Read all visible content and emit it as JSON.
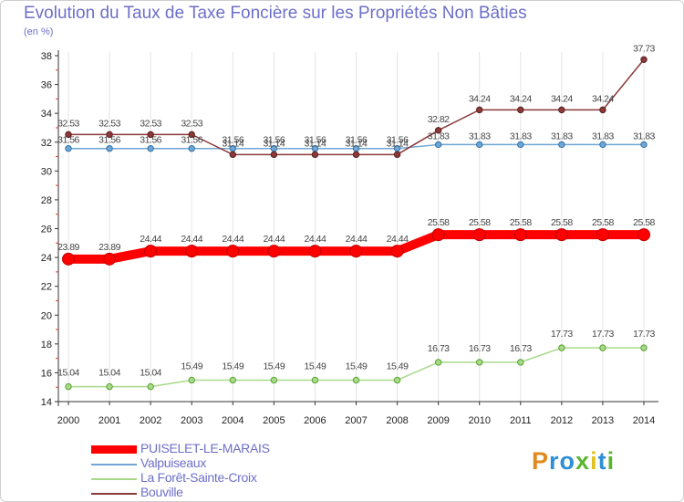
{
  "title": "Evolution du Taux de Taxe Foncière sur les Propriétés Non Bâties",
  "subtitle": "(en %)",
  "logo": {
    "letters": [
      "P",
      "r",
      "o",
      "x",
      "i",
      "t",
      "i"
    ],
    "colors": [
      "#e08a1e",
      "#2e8fd6",
      "#2e8fd6",
      "#5bb52e",
      "#e0c21e",
      "#2e8fd6",
      "#5bb52e"
    ]
  },
  "chart_data": {
    "type": "line",
    "title": "Evolution du Taux de Taxe Foncière sur les Propriétés Non Bâties",
    "ylabel": "(en %)",
    "xlabel": "",
    "ylim": [
      14,
      38
    ],
    "yticks": [
      "14",
      "16",
      "18",
      "20",
      "22",
      "24",
      "26",
      "28",
      "30",
      "32",
      "34",
      "36",
      "38"
    ],
    "x": [
      "2000",
      "2001",
      "2002",
      "2003",
      "2004",
      "2005",
      "2006",
      "2007",
      "2008",
      "2009",
      "2010",
      "2011",
      "2012",
      "2013",
      "2014"
    ],
    "series": [
      {
        "name": "PUISELET-LE-MARAIS",
        "color": "#ff0000",
        "values": [
          23.89,
          23.89,
          24.44,
          24.44,
          24.44,
          24.44,
          24.44,
          24.44,
          24.44,
          25.58,
          25.58,
          25.58,
          25.58,
          25.58,
          25.58
        ],
        "labels": [
          "23.89",
          "23.89",
          "24.44",
          "24.44",
          "24.44",
          "24.44",
          "24.44",
          "24.44",
          "24.44",
          "25.58",
          "25.58",
          "25.58",
          "25.58",
          "25.58",
          "25.58"
        ]
      },
      {
        "name": "Valpuiseaux",
        "color": "#6fa6d4",
        "values": [
          31.56,
          31.56,
          31.56,
          31.56,
          31.56,
          31.56,
          31.56,
          31.56,
          31.56,
          31.83,
          31.83,
          31.83,
          31.83,
          31.83,
          31.83
        ],
        "labels": [
          "31.56",
          "31.56",
          "31.56",
          "31.56",
          "31.56",
          "31.56",
          "31.56",
          "31.56",
          "31.56",
          "31.83",
          "31.83",
          "31.83",
          "31.83",
          "31.83",
          "31.83"
        ]
      },
      {
        "name": "La Forêt-Sainte-Croix",
        "color": "#a8d98a",
        "values": [
          15.04,
          15.04,
          15.04,
          15.49,
          15.49,
          15.49,
          15.49,
          15.49,
          15.49,
          16.73,
          16.73,
          16.73,
          17.73,
          17.73,
          17.73
        ],
        "labels": [
          "15.04",
          "15.04",
          "15.04",
          "15.49",
          "15.49",
          "15.49",
          "15.49",
          "15.49",
          "15.49",
          "16.73",
          "16.73",
          "16.73",
          "17.73",
          "17.73",
          "17.73"
        ]
      },
      {
        "name": "Bouville",
        "color": "#8b3a3a",
        "values": [
          32.53,
          32.53,
          32.53,
          32.53,
          31.14,
          31.14,
          31.14,
          31.14,
          31.14,
          32.82,
          34.24,
          34.24,
          34.24,
          34.24,
          37.73
        ],
        "labels": [
          "32.53",
          "32.53",
          "32.53",
          "32.53",
          "31.14",
          "31.14",
          "31.14",
          "31.14",
          "31.14",
          "32.82",
          "34.24",
          "34.24",
          "34.24",
          "34.24",
          "37.73"
        ]
      }
    ]
  }
}
